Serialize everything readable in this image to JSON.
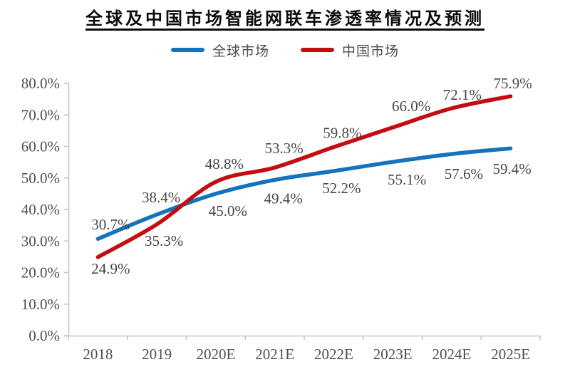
{
  "chart_data": {
    "type": "line",
    "title": "全球及中国市场智能网联车渗透率情况及预测",
    "categories": [
      "2018",
      "2019",
      "2020E",
      "2021E",
      "2022E",
      "2023E",
      "2024E",
      "2025E"
    ],
    "series": [
      {
        "name": "全球市场",
        "color": "#1373BC",
        "values": [
          30.7,
          38.4,
          45.0,
          49.4,
          52.2,
          55.1,
          57.6,
          59.4
        ],
        "data_labels": [
          "30.7%",
          "38.4%",
          "45.0%",
          "49.4%",
          "52.2%",
          "55.1%",
          "57.6%",
          "59.4%"
        ],
        "label_offsets": [
          [
            18,
            -20
          ],
          [
            6,
            -24
          ],
          [
            17,
            24
          ],
          [
            12,
            26
          ],
          [
            11,
            24
          ],
          [
            20,
            25
          ],
          [
            17,
            28
          ],
          [
            2,
            29
          ]
        ]
      },
      {
        "name": "中国市场",
        "color": "#C30D10",
        "values": [
          24.9,
          35.3,
          48.8,
          53.3,
          59.8,
          66.0,
          72.1,
          75.9
        ],
        "data_labels": [
          "24.9%",
          "35.3%",
          "48.8%",
          "53.3%",
          "59.8%",
          "66.0%",
          "72.1%",
          "75.9%"
        ],
        "label_offsets": [
          [
            18,
            16
          ],
          [
            10,
            23
          ],
          [
            12,
            -25
          ],
          [
            13,
            -27
          ],
          [
            12,
            -20
          ],
          [
            26,
            -30
          ],
          [
            15,
            -19
          ],
          [
            3,
            -18
          ]
        ]
      }
    ],
    "x_axis": {
      "tick_labels": [
        "2018",
        "2019",
        "2020E",
        "2021E",
        "2022E",
        "2023E",
        "2024E",
        "2025E"
      ]
    },
    "y_axis": {
      "min": 0,
      "max": 80,
      "step": 10,
      "tick_labels": [
        "0.0%",
        "10.0%",
        "20.0%",
        "30.0%",
        "40.0%",
        "50.0%",
        "60.0%",
        "70.0%",
        "80.0%"
      ]
    },
    "grid": false,
    "smoothed": true,
    "legend_position": "top",
    "colors": {
      "axis": "#C6C6C6",
      "axis_text": "#4F4F4F",
      "data_label_text": "#474747",
      "title_text": "#0A0A0A"
    }
  }
}
